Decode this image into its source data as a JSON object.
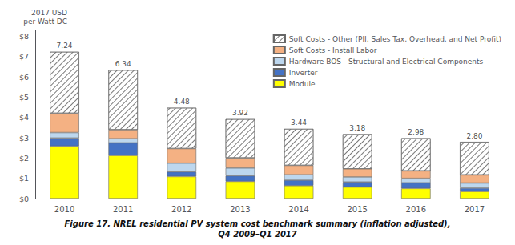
{
  "chart_data": {
    "type": "bar",
    "stacked": true,
    "title": "Figure 17. NREL residential PV system cost benchmark summary (inflation adjusted),\nQ4 2009–Q1 2017",
    "ylabel": "2017 USD\nper Watt DC",
    "categories": [
      "2010",
      "2011",
      "2012",
      "2013",
      "2014",
      "2015",
      "2016",
      "2017"
    ],
    "series": [
      {
        "name": "Module",
        "color": "#ffff00",
        "values": [
          2.59,
          2.13,
          1.09,
          0.85,
          0.64,
          0.57,
          0.5,
          0.35
        ]
      },
      {
        "name": "Inverter",
        "color": "#4472c4",
        "values": [
          0.4,
          0.62,
          0.24,
          0.28,
          0.27,
          0.25,
          0.28,
          0.17
        ]
      },
      {
        "name": "Hardware BOS - Structural and Electrical Components",
        "color": "#bdd7ee",
        "values": [
          0.27,
          0.21,
          0.42,
          0.38,
          0.27,
          0.25,
          0.22,
          0.25
        ]
      },
      {
        "name": "Soft Costs - Install Labor",
        "color": "#f4b183",
        "values": [
          0.95,
          0.44,
          0.72,
          0.5,
          0.46,
          0.4,
          0.37,
          0.4
        ]
      },
      {
        "name": "Soft Costs - Other (PII, Sales Tax, Overhead, and Net Profit)",
        "color": "#ffffff",
        "values": [
          3.03,
          2.94,
          2.01,
          1.91,
          1.8,
          1.71,
          1.61,
          1.63
        ]
      }
    ],
    "totals": [
      7.24,
      6.34,
      4.48,
      3.92,
      3.44,
      3.18,
      2.98,
      2.8
    ],
    "total_labels": [
      "7.24",
      "6.34",
      "4.48",
      "3.92",
      "3.44",
      "3.18",
      "2.98",
      "2.80"
    ],
    "ylim": [
      0,
      8.3
    ],
    "yticks": [
      {
        "value": 0,
        "label": "$0"
      },
      {
        "value": 1,
        "label": "$1"
      },
      {
        "value": 2,
        "label": "$2"
      },
      {
        "value": 3,
        "label": "$3"
      },
      {
        "value": 4,
        "label": "$4"
      },
      {
        "value": 5,
        "label": "$5"
      },
      {
        "value": 6,
        "label": "$6"
      },
      {
        "value": 7,
        "label": "$7"
      },
      {
        "value": 8,
        "label": "$8"
      }
    ],
    "legend": "upper right",
    "grid": false
  }
}
